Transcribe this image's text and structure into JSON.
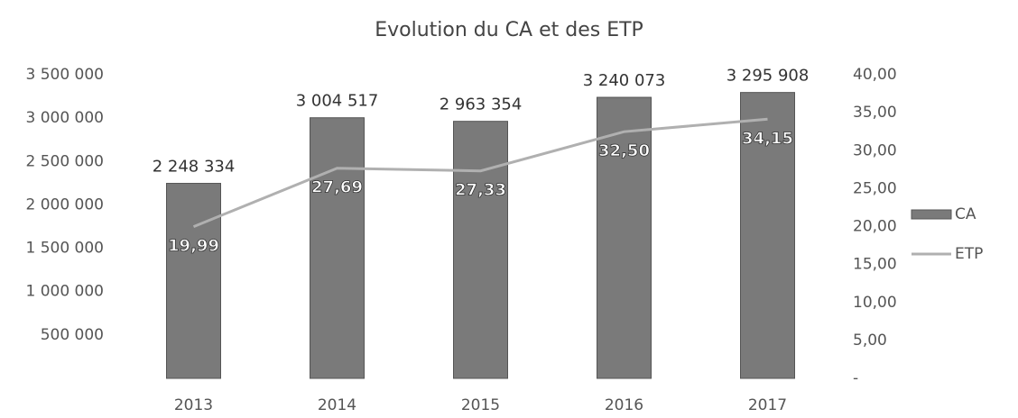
{
  "chart_data": {
    "type": "bar",
    "title": "Evolution du CA et des ETP",
    "categories": [
      "2013",
      "2014",
      "2015",
      "2016",
      "2017"
    ],
    "series": [
      {
        "name": "CA",
        "color": "#7a7a7a",
        "values": [
          2248334,
          3004517,
          2963354,
          3240073,
          3295908
        ],
        "value_labels": [
          "2 248 334",
          "3 004 517",
          "2 963 354",
          "3 240 073",
          "3 295 908"
        ]
      },
      {
        "name": "ETP",
        "type": "line",
        "axis": "y2",
        "color": "#b0b0b0",
        "values": [
          19.99,
          27.69,
          27.33,
          32.5,
          34.15
        ],
        "value_labels": [
          "19,99",
          "27,69",
          "27,33",
          "32,50",
          "34,15"
        ]
      }
    ],
    "ylim": [
      0,
      3500000
    ],
    "yticks": [
      {
        "value": 500000,
        "label": "500 000"
      },
      {
        "value": 1000000,
        "label": "1 000 000"
      },
      {
        "value": 1500000,
        "label": "1 500 000"
      },
      {
        "value": 2000000,
        "label": "2 000 000"
      },
      {
        "value": 2500000,
        "label": "2 500 000"
      },
      {
        "value": 3000000,
        "label": "3 000 000"
      },
      {
        "value": 3500000,
        "label": "3 500 000"
      }
    ],
    "y2lim": [
      0,
      40
    ],
    "y2ticks": [
      {
        "value": 0,
        "label": "-"
      },
      {
        "value": 5,
        "label": "5,00"
      },
      {
        "value": 10,
        "label": "10,00"
      },
      {
        "value": 15,
        "label": "15,00"
      },
      {
        "value": 20,
        "label": "20,00"
      },
      {
        "value": 25,
        "label": "25,00"
      },
      {
        "value": 30,
        "label": "30,00"
      },
      {
        "value": 35,
        "label": "35,00"
      },
      {
        "value": 40,
        "label": "40,00"
      }
    ],
    "legend": "right"
  }
}
